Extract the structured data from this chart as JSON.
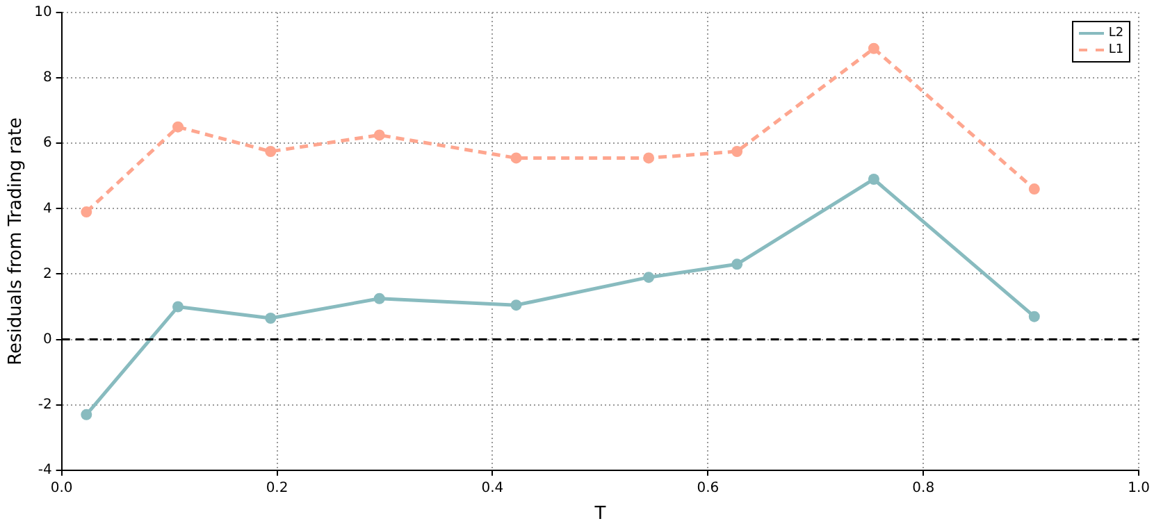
{
  "chart_data": {
    "type": "line",
    "xlabel": "T",
    "ylabel": "Residuals from Trading rate",
    "xlim": [
      0,
      1
    ],
    "xticks": [
      {
        "value": 0,
        "label": "0.0"
      },
      {
        "value": 0.2,
        "label": "0.2"
      },
      {
        "value": 0.4,
        "label": "0.4"
      },
      {
        "value": 0.6,
        "label": "0.6"
      },
      {
        "value": 0.8,
        "label": "0.8"
      },
      {
        "value": 1,
        "label": "1.0"
      }
    ],
    "ylim": [
      -4,
      10
    ],
    "yticks": [
      -4,
      -2,
      0,
      2,
      4,
      6,
      8,
      10
    ],
    "grid": true,
    "legend": "top right",
    "marker": "circle",
    "ref_lines": [
      {
        "axis": "y",
        "value": 0,
        "color": "#000000",
        "line_style": "dashed"
      }
    ],
    "series": [
      {
        "name": "L2",
        "color": "#88bbbf",
        "line_style": "solid",
        "x": [
          0.023,
          0.108,
          0.194,
          0.295,
          0.422,
          0.545,
          0.627,
          0.754,
          0.903
        ],
        "values": [
          -2.3,
          1.0,
          0.65,
          1.25,
          1.05,
          1.9,
          2.3,
          4.9,
          0.7
        ]
      },
      {
        "name": "L1",
        "color": "#fea68f",
        "line_style": "dashed",
        "x": [
          0.023,
          0.108,
          0.194,
          0.295,
          0.422,
          0.545,
          0.627,
          0.754,
          0.903
        ],
        "values": [
          3.9,
          6.5,
          5.75,
          6.25,
          5.55,
          5.55,
          5.75,
          8.9,
          4.6
        ]
      }
    ]
  }
}
